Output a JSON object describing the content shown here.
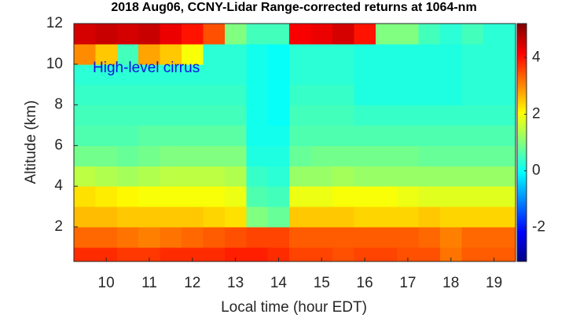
{
  "chart_data": {
    "type": "heatmap",
    "title": "2018 Aug06, CCNY-Lidar Range-corrected returns at 1064-nm",
    "xlabel": "Local time (hour EDT)",
    "ylabel": "Altitude (km)",
    "annotation": "High-level cirrus",
    "annotation_color": "#1010e0",
    "colormap": "jet",
    "x": [
      9.5,
      10,
      10.5,
      11,
      11.5,
      12,
      12.5,
      13,
      13.5,
      14,
      14.5,
      15,
      15.5,
      16,
      16.5,
      17,
      17.5,
      18,
      18.5,
      19,
      19.5
    ],
    "y": [
      0.5,
      1.5,
      2.5,
      3.5,
      4.5,
      5.5,
      6.5,
      7.5,
      8.5,
      9.5,
      10.5,
      11.5
    ],
    "z": [
      [
        3.8,
        3.8,
        3.7,
        3.7,
        3.8,
        3.8,
        3.8,
        3.9,
        3.9,
        3.8,
        3.6,
        3.6,
        3.5,
        3.6,
        3.6,
        3.5,
        3.5,
        3.2,
        3.4,
        3.4,
        3.4
      ],
      [
        3.3,
        3.3,
        3.2,
        3.1,
        3.2,
        3.3,
        3.4,
        3.5,
        3.6,
        3.6,
        3.4,
        3.4,
        3.4,
        3.4,
        3.4,
        3.4,
        3.3,
        3.1,
        3.3,
        3.3,
        3.3
      ],
      [
        2.6,
        2.6,
        2.5,
        2.5,
        2.5,
        2.5,
        2.4,
        2.3,
        1.0,
        0.8,
        2.5,
        2.5,
        2.5,
        2.4,
        2.4,
        2.4,
        2.5,
        2.4,
        2.4,
        2.4,
        2.4
      ],
      [
        2.3,
        2.2,
        2.1,
        2.0,
        2.0,
        2.0,
        2.0,
        1.9,
        0.6,
        0.5,
        1.9,
        1.9,
        2.0,
        2.0,
        2.0,
        1.9,
        1.8,
        1.8,
        1.8,
        1.8,
        1.8
      ],
      [
        1.5,
        1.4,
        1.3,
        1.4,
        1.5,
        1.5,
        1.5,
        1.4,
        0.4,
        0.3,
        1.2,
        1.2,
        1.3,
        1.2,
        1.2,
        1.2,
        1.2,
        1.2,
        1.2,
        1.2,
        1.2
      ],
      [
        0.9,
        0.9,
        0.8,
        0.9,
        1.0,
        1.0,
        1.0,
        1.0,
        0.2,
        0.2,
        0.8,
        0.9,
        0.9,
        0.9,
        0.9,
        0.9,
        0.8,
        0.8,
        0.8,
        0.8,
        0.8
      ],
      [
        0.6,
        0.6,
        0.6,
        0.7,
        0.7,
        0.7,
        0.7,
        0.7,
        0.1,
        0.1,
        0.6,
        0.6,
        0.6,
        0.6,
        0.6,
        0.6,
        0.6,
        0.6,
        0.6,
        0.6,
        0.6
      ],
      [
        0.5,
        0.5,
        0.5,
        0.5,
        0.5,
        0.5,
        0.5,
        0.5,
        0.1,
        0,
        0.5,
        0.5,
        0.5,
        0.4,
        0.4,
        0.4,
        0.4,
        0.4,
        0.4,
        0.4,
        0.4
      ],
      [
        0.4,
        0.4,
        0.4,
        0.4,
        0.4,
        0.4,
        0.4,
        0.4,
        0.1,
        0,
        0.4,
        0.4,
        0.4,
        0.2,
        0.2,
        0.2,
        0.2,
        0.2,
        0.3,
        0.3,
        0.3
      ],
      [
        0.3,
        0.3,
        0.3,
        0.3,
        0.3,
        0.3,
        0.3,
        0.3,
        0.1,
        0,
        0.3,
        0.3,
        0.3,
        0.2,
        0.2,
        0.2,
        0.2,
        0.2,
        0.3,
        0.3,
        0.3
      ],
      [
        3.0,
        2.5,
        0.5,
        2.8,
        2.5,
        2.0,
        0.3,
        0.3,
        0.1,
        0,
        0.3,
        0.3,
        0.3,
        0.2,
        0.2,
        0.2,
        0.2,
        0.2,
        0.3,
        0.3,
        0.3
      ],
      [
        4.5,
        4.6,
        4.5,
        4.6,
        4.3,
        4.0,
        3.5,
        1.0,
        0.5,
        0.5,
        4.2,
        4.3,
        4.5,
        4.0,
        1.0,
        1.0,
        0.5,
        0.3,
        0.5,
        0.3,
        0.3
      ]
    ],
    "xlim": [
      9.25,
      19.5
    ],
    "xticks": [
      10,
      11,
      12,
      13,
      14,
      15,
      16,
      17,
      18,
      19
    ],
    "ylim": [
      0.3,
      12
    ],
    "yticks": [
      2,
      4,
      6,
      8,
      10,
      12
    ],
    "clim": [
      -3.2,
      5.2
    ],
    "cticks": [
      -2,
      0,
      2,
      4
    ]
  }
}
